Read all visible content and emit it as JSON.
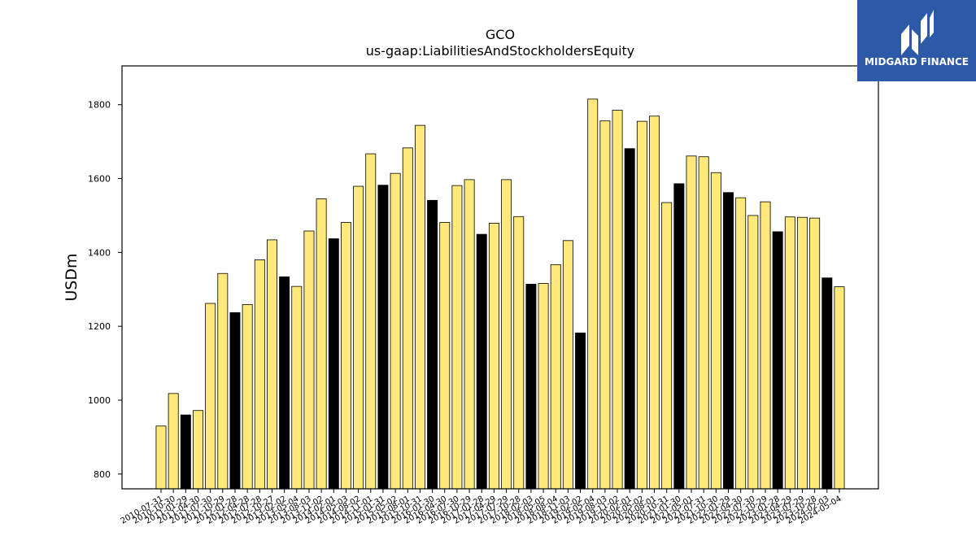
{
  "chart_data": {
    "type": "bar",
    "title": "GCO",
    "subtitle": "us-gaap:LiabilitiesAndStockholdersEquity",
    "ylabel": "USDm",
    "xlabel": "",
    "ylim": [
      760,
      1905
    ],
    "yticks": [
      800,
      1000,
      1200,
      1400,
      1600,
      1800
    ],
    "grid": false,
    "colors": {
      "regular": "#ffe97a",
      "highlight": "#000000",
      "edge": "#000000"
    },
    "categories": [
      "2010-07-31",
      "2010-10-30",
      "2011-01-29",
      "2011-04-30",
      "2011-07-30",
      "2011-10-29",
      "2012-01-28",
      "2012-04-28",
      "2012-07-28",
      "2012-10-27",
      "2013-02-02",
      "2013-05-04",
      "2013-08-03",
      "2013-11-02",
      "2014-02-01",
      "2014-05-03",
      "2014-08-02",
      "2014-11-01",
      "2015-01-31",
      "2015-05-02",
      "2015-08-01",
      "2015-10-31",
      "2016-01-30",
      "2016-04-30",
      "2016-07-30",
      "2016-10-29",
      "2017-01-28",
      "2017-04-29",
      "2017-07-29",
      "2017-10-28",
      "2018-02-03",
      "2018-05-05",
      "2018-08-04",
      "2018-11-03",
      "2019-02-02",
      "2019-05-04",
      "2019-08-03",
      "2019-11-02",
      "2020-02-01",
      "2020-05-02",
      "2020-08-01",
      "2020-10-31",
      "2021-01-30",
      "2021-05-01",
      "2021-07-31",
      "2021-10-30",
      "2022-01-29",
      "2022-04-30",
      "2022-07-30",
      "2022-10-29",
      "2023-01-28",
      "2023-04-29",
      "2023-07-29",
      "2023-10-28",
      "2024-02-03",
      "2024-05-04"
    ],
    "values": [
      930,
      1018,
      960,
      972,
      1262,
      1343,
      1237,
      1259,
      1380,
      1434,
      1334,
      1308,
      1458,
      1545,
      1437,
      1481,
      1579,
      1667,
      1582,
      1614,
      1683,
      1744,
      1541,
      1481,
      1581,
      1597,
      1449,
      1479,
      1597,
      1497,
      1314,
      1316,
      1367,
      1432,
      1182,
      1815,
      1756,
      1785,
      1681,
      1755,
      1769,
      1535,
      1586,
      1661,
      1659,
      1616,
      1562,
      1548,
      1500,
      1537,
      1456,
      1496,
      1495,
      1493,
      1331,
      1307
    ],
    "highlight": [
      false,
      false,
      true,
      false,
      false,
      false,
      true,
      false,
      false,
      false,
      true,
      false,
      false,
      false,
      true,
      false,
      false,
      false,
      true,
      false,
      false,
      false,
      true,
      false,
      false,
      false,
      true,
      false,
      false,
      false,
      true,
      false,
      false,
      false,
      true,
      false,
      false,
      false,
      true,
      false,
      false,
      false,
      true,
      false,
      false,
      false,
      true,
      false,
      false,
      false,
      true,
      false,
      false,
      false,
      true,
      false
    ]
  },
  "logo": {
    "name": "MIDGARD FINANCE",
    "background": "#2c5aa8"
  }
}
